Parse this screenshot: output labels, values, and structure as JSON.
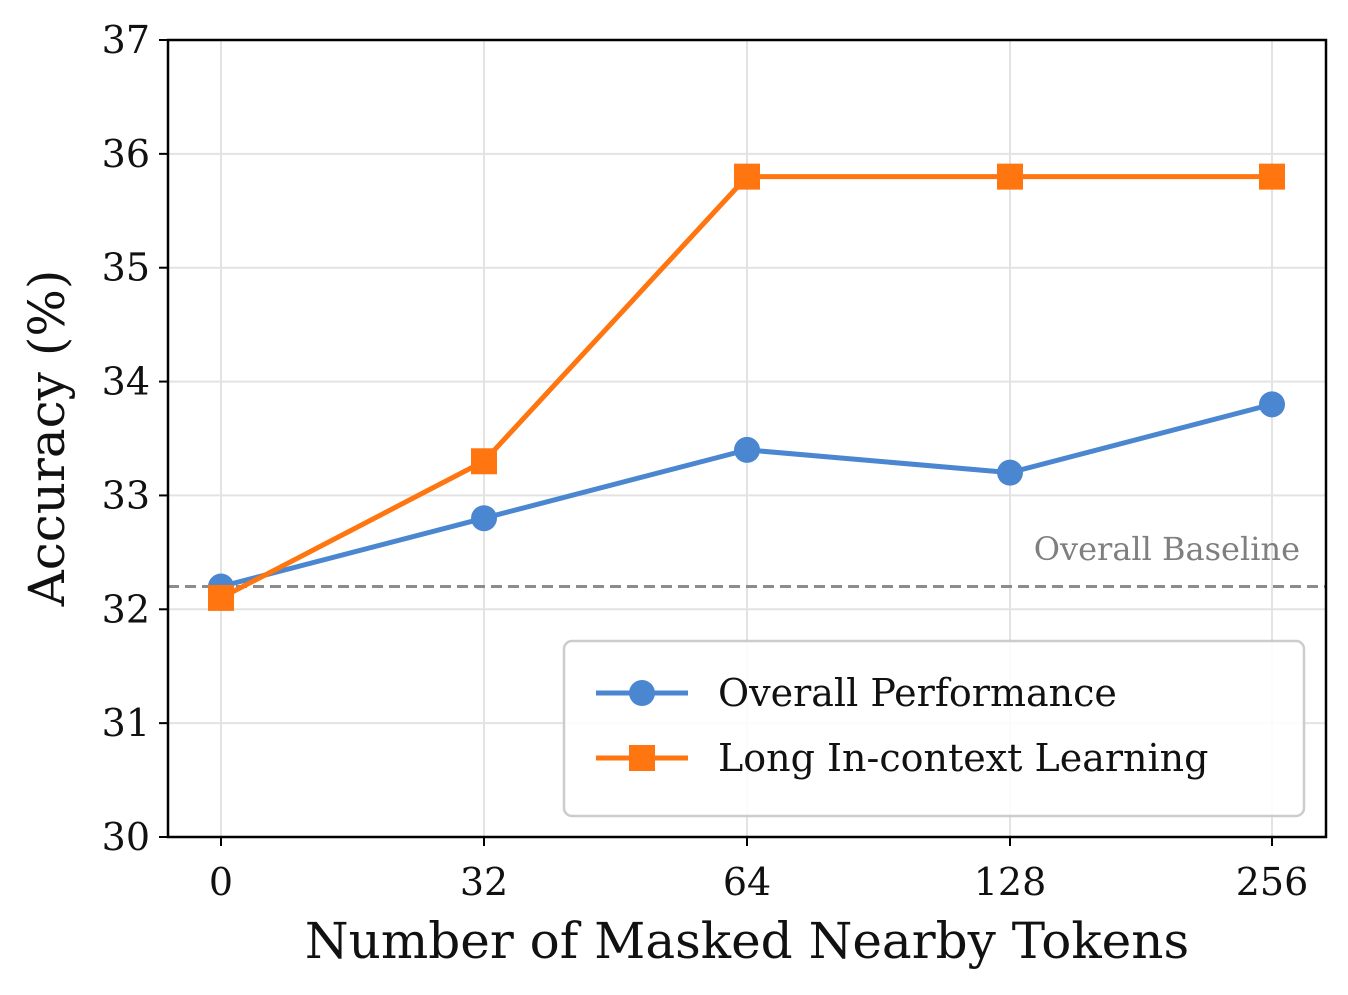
{
  "chart_data": {
    "type": "line",
    "xlabel": "Number of Masked Nearby Tokens",
    "ylabel": "Accuracy (%)",
    "categories": [
      "0",
      "32",
      "64",
      "128",
      "256"
    ],
    "ylim": [
      30,
      37
    ],
    "yticks": [
      "30",
      "31",
      "32",
      "33",
      "34",
      "35",
      "36",
      "37"
    ],
    "grid": true,
    "legend_position": "lower-right",
    "series": [
      {
        "name": "Overall Performance",
        "values": [
          32.2,
          32.8,
          33.4,
          33.2,
          33.8
        ],
        "color": "#4a87d0",
        "marker": "circle"
      },
      {
        "name": "Long In-context Learning",
        "values": [
          32.1,
          33.3,
          35.8,
          35.8,
          35.8
        ],
        "color": "#ff7510",
        "marker": "square"
      }
    ],
    "reference_line": {
      "label": "Overall Baseline",
      "value": 32.2,
      "color": "#8c8c8c",
      "style": "dashed"
    }
  }
}
